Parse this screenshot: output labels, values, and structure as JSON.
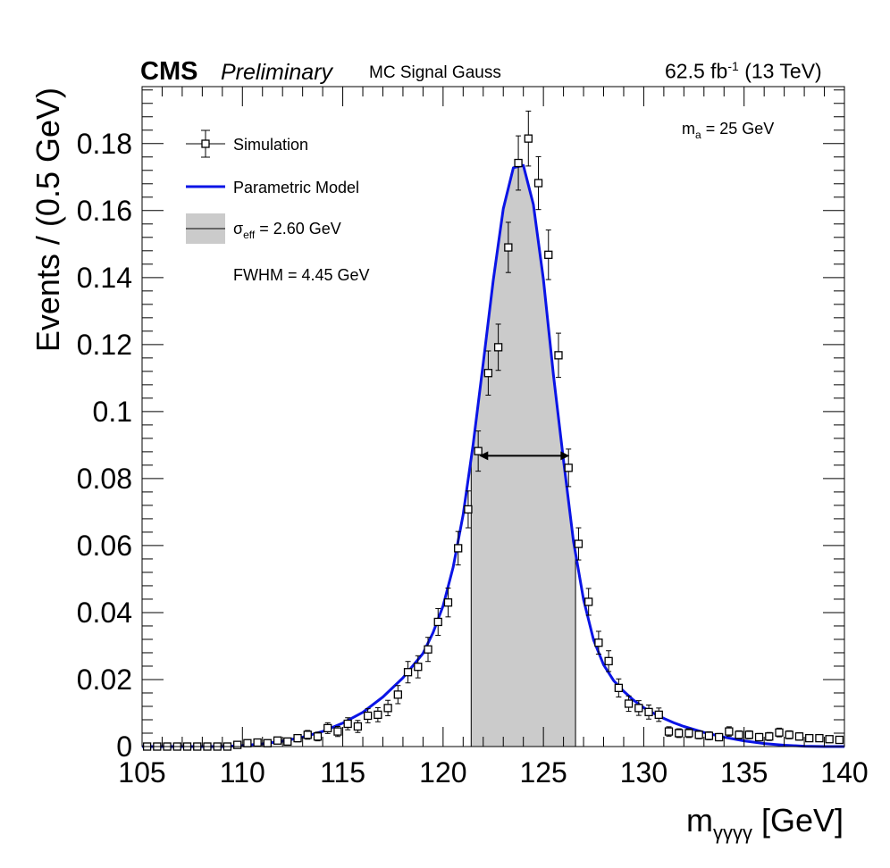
{
  "header": {
    "experiment": "CMS",
    "status": "Preliminary",
    "sample": "MC Signal Gauss",
    "lumi_value": "62.5 fb",
    "lumi_exp": "-1",
    "lumi_energy": "(13 TeV)"
  },
  "annotation": {
    "main": "m",
    "sub": "a",
    "rest": " = 25 GeV"
  },
  "legend": {
    "simulation": "Simulation",
    "model": "Parametric Model",
    "sigma_symbol": "σ",
    "sigma_sub": "eff",
    "sigma_rest": " = 2.60 GeV",
    "fwhm": "FWHM = 4.45 GeV"
  },
  "colors": {
    "model": "#0a14e6",
    "band": "#cbcbcb",
    "points": "#000000",
    "frame": "#000000"
  },
  "chart_data": {
    "type": "scatter",
    "xlabel_main": "m",
    "xlabel_sub": "γγγγ",
    "xlabel_unit": " [GeV]",
    "ylabel": "Events / (0.5  GeV)",
    "xlim": [
      105,
      140
    ],
    "ylim": [
      0,
      0.197
    ],
    "x_ticks": [
      105,
      110,
      115,
      120,
      125,
      130,
      135,
      140
    ],
    "x_tick_labels": [
      "105",
      "110",
      "115",
      "120",
      "125",
      "130",
      "135",
      "140"
    ],
    "y_ticks": [
      0,
      0.02,
      0.04,
      0.06,
      0.08,
      0.1,
      0.12,
      0.14,
      0.16,
      0.18
    ],
    "y_tick_labels": [
      "0",
      "0.02",
      "0.04",
      "0.06",
      "0.08",
      "0.1",
      "0.12",
      "0.14",
      "0.16",
      "0.18"
    ],
    "sigma_eff_band": [
      121.4,
      126.6
    ],
    "fwhm_arrow": {
      "x1": 121.8,
      "x2": 126.3,
      "y": 0.0868
    },
    "series": [
      {
        "name": "Simulation",
        "kind": "points_with_errors",
        "x": [
          105.25,
          105.75,
          106.25,
          106.75,
          107.25,
          107.75,
          108.25,
          108.75,
          109.25,
          109.75,
          110.25,
          110.75,
          111.25,
          111.75,
          112.25,
          112.75,
          113.25,
          113.75,
          114.25,
          114.75,
          115.25,
          115.75,
          116.25,
          116.75,
          117.25,
          117.75,
          118.25,
          118.75,
          119.25,
          119.75,
          120.25,
          120.75,
          121.25,
          121.75,
          122.25,
          122.75,
          123.25,
          123.75,
          124.25,
          124.75,
          125.25,
          125.75,
          126.25,
          126.75,
          127.25,
          127.75,
          128.25,
          128.75,
          129.25,
          129.75,
          130.25,
          130.75,
          131.25,
          131.75,
          132.25,
          132.75,
          133.25,
          133.75,
          134.25,
          134.75,
          135.25,
          135.75,
          136.25,
          136.75,
          137.25,
          137.75,
          138.25,
          138.75,
          139.25,
          139.75
        ],
        "y": [
          0,
          0,
          0,
          0,
          0,
          0,
          0,
          0,
          0,
          0.0005,
          0.001,
          0.0012,
          0.001,
          0.0018,
          0.0015,
          0.0025,
          0.0035,
          0.003,
          0.0055,
          0.0045,
          0.0068,
          0.006,
          0.0092,
          0.0095,
          0.0115,
          0.0155,
          0.0222,
          0.0238,
          0.029,
          0.0372,
          0.043,
          0.0592,
          0.0708,
          0.0882,
          0.1115,
          0.1192,
          0.149,
          0.1742,
          0.1815,
          0.1682,
          0.1468,
          0.1168,
          0.0832,
          0.0605,
          0.0432,
          0.031,
          0.0255,
          0.0175,
          0.0128,
          0.0115,
          0.0103,
          0.0095,
          0.0045,
          0.004,
          0.004,
          0.0035,
          0.0032,
          0.0028,
          0.0045,
          0.0035,
          0.0035,
          0.0028,
          0.003,
          0.0042,
          0.0035,
          0.003,
          0.0025,
          0.0025,
          0.0022,
          0.002
        ],
        "yerr": [
          0,
          0,
          0,
          0,
          0,
          0,
          0,
          0,
          0,
          0.0005,
          0.0008,
          0.0008,
          0.0008,
          0.001,
          0.001,
          0.0011,
          0.0013,
          0.0013,
          0.0016,
          0.0015,
          0.0018,
          0.0018,
          0.0021,
          0.0021,
          0.0023,
          0.0027,
          0.0032,
          0.0033,
          0.0036,
          0.004,
          0.0043,
          0.005,
          0.0055,
          0.006,
          0.0066,
          0.0069,
          0.0075,
          0.0081,
          0.0082,
          0.0079,
          0.0074,
          0.0066,
          0.0056,
          0.0048,
          0.004,
          0.0034,
          0.0031,
          0.0027,
          0.0023,
          0.0022,
          0.0021,
          0.002,
          0.0014,
          0.0013,
          0.0013,
          0.0012,
          0.0012,
          0.0011,
          0.0014,
          0.0012,
          0.0012,
          0.0011,
          0.0012,
          0.0013,
          0.0012,
          0.0011,
          0.001,
          0.001,
          0.001,
          0.001
        ]
      },
      {
        "name": "Parametric Model",
        "kind": "line",
        "x": [
          105,
          107,
          109,
          110,
          111,
          112,
          113,
          114,
          115,
          116,
          117,
          118,
          119,
          119.5,
          120,
          120.5,
          121,
          121.5,
          122,
          122.5,
          123,
          123.5,
          124,
          124.5,
          125,
          125.5,
          126,
          126.5,
          127,
          127.5,
          128,
          128.5,
          129,
          129.5,
          130,
          130.5,
          131,
          131.5,
          132,
          133,
          134,
          135,
          136,
          137,
          138,
          139,
          140
        ],
        "y": [
          0,
          0,
          0,
          0.0003,
          0.0008,
          0.0016,
          0.0028,
          0.0045,
          0.007,
          0.0102,
          0.0148,
          0.0205,
          0.0278,
          0.034,
          0.042,
          0.0535,
          0.0692,
          0.0902,
          0.1145,
          0.1392,
          0.1605,
          0.1728,
          0.1735,
          0.1618,
          0.1395,
          0.1108,
          0.0855,
          0.0612,
          0.0438,
          0.0318,
          0.0244,
          0.0197,
          0.0165,
          0.0138,
          0.0116,
          0.0099,
          0.0084,
          0.0071,
          0.006,
          0.0042,
          0.0028,
          0.0017,
          0.0009,
          0.0004,
          0.0001,
          0,
          0
        ]
      }
    ]
  }
}
